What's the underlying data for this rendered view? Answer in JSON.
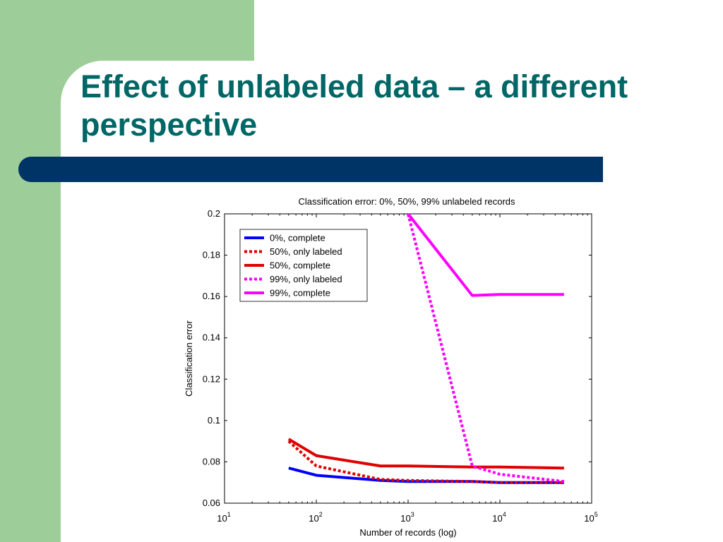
{
  "slide": {
    "title": "Effect of unlabeled data – a different perspective",
    "colors": {
      "green_band": "#9dcd98",
      "title_text": "#006666",
      "blue_bar": "#003366"
    }
  },
  "chart_data": {
    "type": "line",
    "title": "Classification error: 0%, 50%, 99% unlabeled records",
    "xlabel": "Number of records (log)",
    "ylabel": "Classification error",
    "x_scale": "log",
    "xlim": [
      10,
      100000
    ],
    "ylim": [
      0.06,
      0.2
    ],
    "x_ticks": [
      {
        "base": "10",
        "exp": "1",
        "value": 10
      },
      {
        "base": "10",
        "exp": "2",
        "value": 100
      },
      {
        "base": "10",
        "exp": "3",
        "value": 1000
      },
      {
        "base": "10",
        "exp": "4",
        "value": 10000
      },
      {
        "base": "10",
        "exp": "5",
        "value": 100000
      }
    ],
    "y_ticks": [
      "0.06",
      "0.08",
      "0.1",
      "0.12",
      "0.14",
      "0.16",
      "0.18",
      "0.2"
    ],
    "legend_position": "top-left",
    "series": [
      {
        "name": "0%, complete",
        "color": "#0000ff",
        "style": "solid",
        "x": [
          50,
          100,
          500,
          1000,
          5000,
          10000,
          50000
        ],
        "y": [
          0.077,
          0.0735,
          0.071,
          0.0705,
          0.0705,
          0.07,
          0.07
        ]
      },
      {
        "name": "50%, only labeled",
        "color": "#e00000",
        "style": "dotted",
        "x": [
          50,
          100,
          500,
          1000,
          5000,
          10000,
          50000
        ],
        "y": [
          0.09,
          0.078,
          0.0715,
          0.071,
          0.0705,
          0.07,
          0.07
        ]
      },
      {
        "name": "50%, complete",
        "color": "#e00000",
        "style": "solid",
        "x": [
          50,
          100,
          500,
          1000,
          5000,
          10000,
          50000
        ],
        "y": [
          0.091,
          0.083,
          0.078,
          0.078,
          0.0775,
          0.0775,
          0.077
        ]
      },
      {
        "name": "99%, only labeled",
        "color": "#ff00ff",
        "style": "dotted",
        "x": [
          1000,
          5000,
          10000,
          50000
        ],
        "y": [
          0.2,
          0.078,
          0.074,
          0.0705
        ]
      },
      {
        "name": "99%, complete",
        "color": "#ff00ff",
        "style": "solid",
        "x": [
          1000,
          5000,
          10000,
          50000
        ],
        "y": [
          0.2,
          0.1605,
          0.161,
          0.161
        ]
      }
    ]
  }
}
